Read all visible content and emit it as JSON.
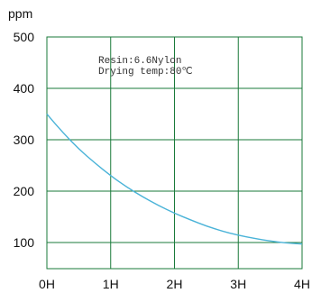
{
  "chart_data": {
    "type": "line",
    "title": "",
    "ylabel": "ppm",
    "xlabel": "",
    "x_tick_labels": [
      "0H",
      "1H",
      "2H",
      "3H",
      "4H"
    ],
    "y_tick_labels": [
      "100",
      "200",
      "300",
      "400",
      "500"
    ],
    "y_ticks": [
      100,
      200,
      300,
      400,
      500
    ],
    "xlim": [
      0,
      4
    ],
    "ylim": [
      50,
      500
    ],
    "grid": true,
    "annotations": [
      "Resin:6.6Nylon",
      "Drying temp:80℃"
    ],
    "series": [
      {
        "x": [
          0,
          0.25,
          0.5,
          0.75,
          1,
          1.25,
          1.5,
          1.75,
          2,
          2.25,
          2.5,
          2.75,
          3,
          3.25,
          3.5,
          3.75,
          4
        ],
        "y": [
          350,
          314,
          282,
          255,
          230,
          208,
          189,
          172,
          157,
          144,
          132,
          122,
          114,
          108,
          103,
          99,
          97
        ],
        "color": "#4ab3d8"
      }
    ],
    "colors": {
      "grid": "#1a7a3a",
      "curve": "#4ab3d8"
    }
  }
}
